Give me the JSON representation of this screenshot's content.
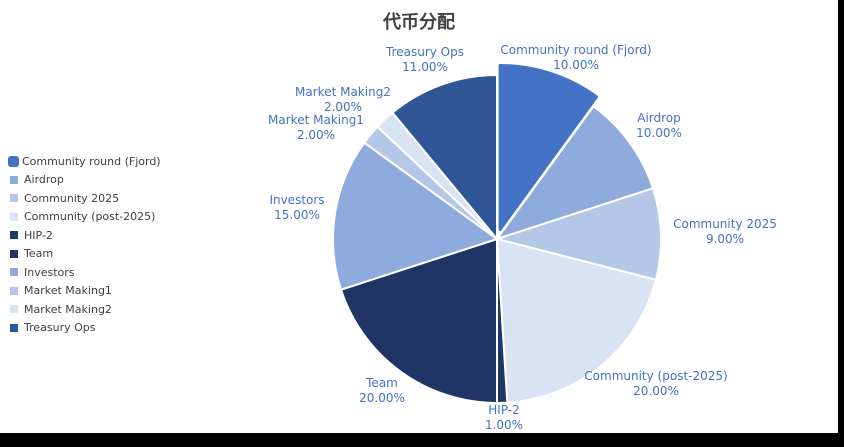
{
  "chart_data": {
    "type": "pie",
    "title": "代币分配",
    "legend_position": "left",
    "slices": [
      {
        "name": "Community round (Fjord)",
        "value": 10.0,
        "label": "10.00%",
        "color": "#4472C4"
      },
      {
        "name": "Airdrop",
        "value": 10.0,
        "label": "10.00%",
        "color": "#8FAADC"
      },
      {
        "name": "Community 2025",
        "value": 9.0,
        "label": "9.00%",
        "color": "#B4C7E7"
      },
      {
        "name": "Community (post-2025)",
        "value": 20.0,
        "label": "20.00%",
        "color": "#DAE3F3"
      },
      {
        "name": "HIP-2",
        "value": 1.0,
        "label": "1.00%",
        "color": "#203864"
      },
      {
        "name": "Team",
        "value": 20.0,
        "label": "20.00%",
        "color": "#1F3566"
      },
      {
        "name": "Investors",
        "value": 15.0,
        "label": "15.00%",
        "color": "#8FAADC"
      },
      {
        "name": "Market Making1",
        "value": 2.0,
        "label": "2.00%",
        "color": "#B4C7E7"
      },
      {
        "name": "Market Making2",
        "value": 2.0,
        "label": "2.00%",
        "color": "#DAE3F3"
      },
      {
        "name": "Treasury Ops",
        "value": 11.0,
        "label": "11.00%",
        "color": "#2F5597"
      }
    ]
  }
}
